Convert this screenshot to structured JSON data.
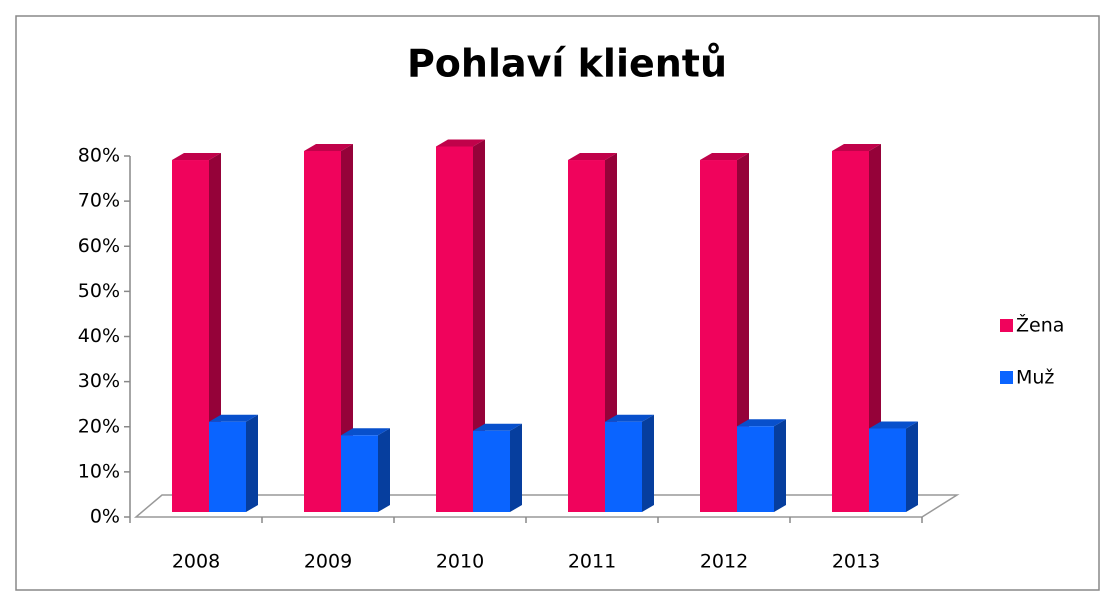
{
  "chart_data": {
    "type": "bar3d",
    "title": "Pohlaví klientů",
    "categories": [
      "2008",
      "2009",
      "2010",
      "2011",
      "2012",
      "2013"
    ],
    "series": [
      {
        "name": "Žena",
        "color": "#f0035c",
        "values": [
          78,
          80,
          81,
          78,
          78,
          80
        ]
      },
      {
        "name": "Muž",
        "color": "#0a64ff",
        "values": [
          20,
          17,
          18,
          20,
          19,
          18.5
        ]
      }
    ],
    "ylim": [
      0,
      80
    ],
    "yticks": [
      {
        "value": 0,
        "label": "0%"
      },
      {
        "value": 10,
        "label": "10%"
      },
      {
        "value": 20,
        "label": "20%"
      },
      {
        "value": 30,
        "label": "30%"
      },
      {
        "value": 40,
        "label": "40%"
      },
      {
        "value": 50,
        "label": "50%"
      },
      {
        "value": 60,
        "label": "60%"
      },
      {
        "value": 70,
        "label": "70%"
      },
      {
        "value": 80,
        "label": "80%"
      }
    ],
    "legend": "right"
  }
}
